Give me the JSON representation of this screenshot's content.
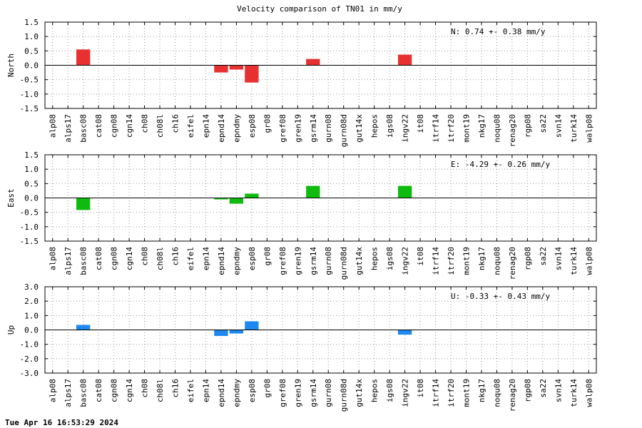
{
  "title": "Velocity comparison of TN01 in mm/y",
  "timestamp": "Tue Apr 16 16:53:29 2024",
  "chart_data": [
    {
      "type": "bar",
      "ylabel": "North",
      "color": "#e83030",
      "ylim": [
        -1.5,
        1.5
      ],
      "yticks": [
        "1.5",
        "1.0",
        "0.5",
        "0.0",
        "-0.5",
        "-1.0",
        "-1.5"
      ],
      "stat": "N:   0.74 +-  0.38 mm/y",
      "grid": true,
      "categories": [
        "alp08",
        "alps17",
        "basc08",
        "cat08",
        "cgn08",
        "cgn14",
        "ch08",
        "ch08l",
        "ch16",
        "eifel",
        "epn14",
        "epnd14",
        "epndmy",
        "esp08",
        "gr08",
        "gref08",
        "gren19",
        "gsrm14",
        "gurn08",
        "gurn08d",
        "gut14x",
        "hepos",
        "igs08",
        "ingv22",
        "it08",
        "itrf14",
        "itrf20",
        "mont19",
        "nkg17",
        "noqu08",
        "renag20",
        "rgp08",
        "sa22",
        "svn14",
        "turk14",
        "walp08"
      ],
      "values": [
        0,
        0,
        0.55,
        0,
        0,
        0,
        0,
        0,
        0,
        0,
        0,
        -0.25,
        -0.15,
        -0.6,
        0,
        0,
        0,
        0.22,
        0,
        0,
        0,
        0,
        0,
        0.37,
        0,
        0,
        0,
        0,
        0,
        0,
        0,
        0,
        0,
        0,
        0,
        0
      ]
    },
    {
      "type": "bar",
      "ylabel": "East",
      "color": "#10bb10",
      "ylim": [
        -1.5,
        1.5
      ],
      "yticks": [
        "1.5",
        "1.0",
        "0.5",
        "0.0",
        "-0.5",
        "-1.0",
        "-1.5"
      ],
      "stat": "E:  -4.29 +-  0.26 mm/y",
      "grid": true,
      "categories": [
        "alp08",
        "alps17",
        "basc08",
        "cat08",
        "cgn08",
        "cgn14",
        "ch08",
        "ch08l",
        "ch16",
        "eifel",
        "epn14",
        "epnd14",
        "epndmy",
        "esp08",
        "gr08",
        "gref08",
        "gren19",
        "gsrm14",
        "gurn08",
        "gurn08d",
        "gut14x",
        "hepos",
        "igs08",
        "ingv22",
        "it08",
        "itrf14",
        "itrf20",
        "mont19",
        "nkg17",
        "noqu08",
        "renag20",
        "rgp08",
        "sa22",
        "svn14",
        "turk14",
        "walp08"
      ],
      "values": [
        0,
        0,
        -0.42,
        0,
        0,
        0,
        0,
        0,
        0,
        0,
        0,
        -0.05,
        -0.2,
        0.15,
        0,
        0,
        0,
        0.42,
        0,
        0,
        0,
        0,
        0,
        0.42,
        0,
        0,
        0,
        0,
        0,
        0,
        0,
        0,
        0,
        0,
        0,
        0
      ]
    },
    {
      "type": "bar",
      "ylabel": "Up",
      "color": "#1e88f0",
      "ylim": [
        -3.0,
        3.0
      ],
      "yticks": [
        "3.0",
        "2.0",
        "1.0",
        "0.0",
        "-1.0",
        "-2.0",
        "-3.0"
      ],
      "stat": "U:  -0.33 +-  0.43 mm/y",
      "grid": true,
      "categories": [
        "alp08",
        "alps17",
        "basc08",
        "cat08",
        "cgn08",
        "cgn14",
        "ch08",
        "ch08l",
        "ch16",
        "eifel",
        "epn14",
        "epnd14",
        "epndmy",
        "esp08",
        "gr08",
        "gref08",
        "gren19",
        "gsrm14",
        "gurn08",
        "gurn08d",
        "gut14x",
        "hepos",
        "igs08",
        "ingv22",
        "it08",
        "itrf14",
        "itrf20",
        "mont19",
        "nkg17",
        "noqu08",
        "renag20",
        "rgp08",
        "sa22",
        "svn14",
        "turk14",
        "walp08"
      ],
      "values": [
        0,
        0,
        0.35,
        0,
        0,
        0,
        0,
        0,
        0,
        0,
        0,
        -0.42,
        -0.25,
        0.6,
        0,
        0,
        0,
        0,
        0,
        0,
        0,
        0,
        0,
        -0.33,
        0,
        0,
        0,
        0,
        0,
        0,
        0,
        0,
        0,
        0,
        0,
        0
      ]
    }
  ]
}
